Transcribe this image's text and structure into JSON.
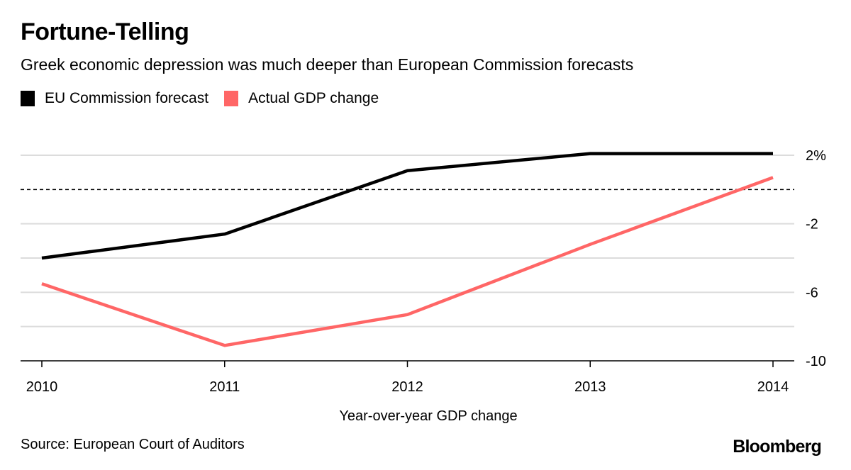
{
  "chart_data": {
    "type": "line",
    "title": "Fortune-Telling",
    "subtitle": "Greek economic depression was much deeper than European Commission forecasts",
    "xlabel": "Year-over-year GDP change",
    "ylabel": "",
    "x": [
      "2010",
      "2011",
      "2012",
      "2013",
      "2014"
    ],
    "series": [
      {
        "name": "EU Commission forecast",
        "color": "#000000",
        "values": [
          -4.0,
          -2.6,
          1.1,
          2.1,
          2.1
        ]
      },
      {
        "name": "Actual GDP change",
        "color": "#ff6666",
        "values": [
          -5.5,
          -9.1,
          -7.3,
          -3.2,
          0.7
        ]
      }
    ],
    "ylim": [
      -10,
      2
    ],
    "yticks": [
      2,
      0,
      -2,
      -4,
      -6,
      -8,
      -10
    ],
    "ytick_labels": [
      {
        "value": 2,
        "label": "2%"
      },
      {
        "value": -2,
        "label": "-2"
      },
      {
        "value": -6,
        "label": "-6"
      },
      {
        "value": -10,
        "label": "-10"
      }
    ],
    "zero_line": "dashed",
    "grid": true,
    "legend_position": "top-left",
    "y_axis_side": "right"
  },
  "footer": {
    "source": "Source: European Court of Auditors",
    "brand": "Bloomberg"
  }
}
